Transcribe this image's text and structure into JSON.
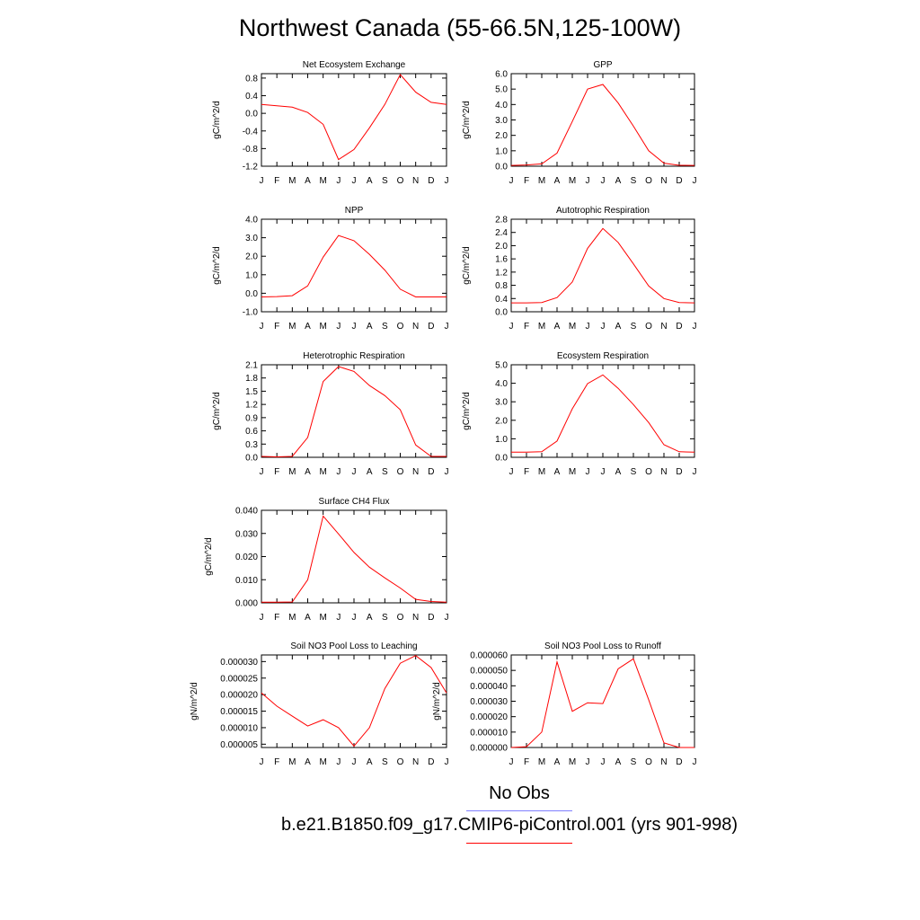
{
  "title": "Northwest Canada (55-66.5N,125-100W)",
  "colors": {
    "model_line": "#ff0000",
    "obs_line": "#8080ff",
    "axis": "#000000"
  },
  "legend": {
    "obs_label": "No Obs",
    "model_label": "b.e21.B1850.f09_g17.CMIP6-piControl.001 (yrs 901-998)"
  },
  "chart_data": [
    {
      "type": "line",
      "title": "Net Ecosystem Exchange",
      "ylabel": "gC/m^2/d",
      "xlabel": "",
      "x": [
        "J",
        "F",
        "M",
        "A",
        "M",
        "J",
        "J",
        "A",
        "S",
        "O",
        "N",
        "D",
        "J"
      ],
      "ylim": [
        -1.2,
        0.9
      ],
      "yticks": [
        -1.2,
        -0.8,
        -0.4,
        0.0,
        0.4,
        0.8
      ],
      "ytick_labels": [
        "-1.2",
        "-0.8",
        "-0.4",
        "0.0",
        "0.4",
        "0.8"
      ],
      "series": [
        {
          "values": [
            0.2,
            0.17,
            0.14,
            0.02,
            -0.25,
            -1.05,
            -0.82,
            -0.33,
            0.2,
            0.88,
            0.48,
            0.25,
            0.2
          ]
        }
      ]
    },
    {
      "type": "line",
      "title": "GPP",
      "ylabel": "gC/m^2/d",
      "xlabel": "",
      "x": [
        "J",
        "F",
        "M",
        "A",
        "M",
        "J",
        "J",
        "A",
        "S",
        "O",
        "N",
        "D",
        "J"
      ],
      "ylim": [
        0,
        6.0
      ],
      "yticks": [
        0,
        1,
        2,
        3,
        4,
        5,
        6
      ],
      "ytick_labels": [
        "0.0",
        "1.0",
        "2.0",
        "3.0",
        "4.0",
        "5.0",
        "6.0"
      ],
      "series": [
        {
          "values": [
            0.05,
            0.08,
            0.15,
            0.85,
            2.9,
            5.0,
            5.3,
            4.1,
            2.6,
            1.0,
            0.2,
            0.06,
            0.05
          ]
        }
      ]
    },
    {
      "type": "line",
      "title": "NPP",
      "ylabel": "gC/m^2/d",
      "xlabel": "",
      "x": [
        "J",
        "F",
        "M",
        "A",
        "M",
        "J",
        "J",
        "A",
        "S",
        "O",
        "N",
        "D",
        "J"
      ],
      "ylim": [
        -1.0,
        4.0
      ],
      "yticks": [
        -1,
        0,
        1,
        2,
        3,
        4
      ],
      "ytick_labels": [
        "-1.0",
        "0.0",
        "1.0",
        "2.0",
        "3.0",
        "4.0"
      ],
      "series": [
        {
          "values": [
            -0.2,
            -0.18,
            -0.13,
            0.4,
            1.95,
            3.12,
            2.84,
            2.1,
            1.25,
            0.22,
            -0.2,
            -0.2,
            -0.2
          ]
        }
      ]
    },
    {
      "type": "line",
      "title": "Autotrophic Respiration",
      "ylabel": "gC/m^2/d",
      "xlabel": "",
      "x": [
        "J",
        "F",
        "M",
        "A",
        "M",
        "J",
        "J",
        "A",
        "S",
        "O",
        "N",
        "D",
        "J"
      ],
      "ylim": [
        0,
        2.8
      ],
      "yticks": [
        0,
        0.4,
        0.8,
        1.2,
        1.6,
        2.0,
        2.4,
        2.8
      ],
      "ytick_labels": [
        "0.0",
        "0.4",
        "0.8",
        "1.2",
        "1.6",
        "2.0",
        "2.4",
        "2.8"
      ],
      "series": [
        {
          "values": [
            0.27,
            0.27,
            0.28,
            0.43,
            0.9,
            1.92,
            2.52,
            2.1,
            1.45,
            0.78,
            0.4,
            0.28,
            0.27
          ]
        }
      ]
    },
    {
      "type": "line",
      "title": "Heterotrophic Respiration",
      "ylabel": "gC/m^2/d",
      "xlabel": "",
      "x": [
        "J",
        "F",
        "M",
        "A",
        "M",
        "J",
        "J",
        "A",
        "S",
        "O",
        "N",
        "D",
        "J"
      ],
      "ylim": [
        0,
        2.1
      ],
      "yticks": [
        0,
        0.3,
        0.6,
        0.9,
        1.2,
        1.5,
        1.8,
        2.1
      ],
      "ytick_labels": [
        "0.0",
        "0.3",
        "0.6",
        "0.9",
        "1.2",
        "1.5",
        "1.8",
        "2.1"
      ],
      "series": [
        {
          "values": [
            0.02,
            0.01,
            0.02,
            0.45,
            1.72,
            2.06,
            1.95,
            1.63,
            1.4,
            1.08,
            0.28,
            0.02,
            0.02
          ]
        }
      ]
    },
    {
      "type": "line",
      "title": "Ecosystem Respiration",
      "ylabel": "gC/m^2/d",
      "xlabel": "",
      "x": [
        "J",
        "F",
        "M",
        "A",
        "M",
        "J",
        "J",
        "A",
        "S",
        "O",
        "N",
        "D",
        "J"
      ],
      "ylim": [
        0,
        5.0
      ],
      "yticks": [
        0,
        1,
        2,
        3,
        4,
        5
      ],
      "ytick_labels": [
        "0.0",
        "1.0",
        "2.0",
        "3.0",
        "4.0",
        "5.0"
      ],
      "series": [
        {
          "values": [
            0.28,
            0.28,
            0.3,
            0.88,
            2.62,
            3.98,
            4.45,
            3.73,
            2.85,
            1.88,
            0.68,
            0.3,
            0.28
          ]
        }
      ]
    },
    {
      "type": "line",
      "title": "Surface CH4 Flux",
      "ylabel": "gC/m^2/d",
      "xlabel": "",
      "x": [
        "J",
        "F",
        "M",
        "A",
        "M",
        "J",
        "J",
        "A",
        "S",
        "O",
        "N",
        "D",
        "J"
      ],
      "ylim": [
        0,
        0.04
      ],
      "yticks": [
        0,
        0.01,
        0.02,
        0.03,
        0.04
      ],
      "ytick_labels": [
        "0.000",
        "0.010",
        "0.020",
        "0.030",
        "0.040"
      ],
      "series": [
        {
          "values": [
            0.0003,
            0.0003,
            0.0004,
            0.01,
            0.0375,
            0.0298,
            0.0218,
            0.0154,
            0.0108,
            0.0064,
            0.0015,
            0.0006,
            0.0003
          ]
        }
      ]
    },
    {
      "type": "line",
      "title": "Soil NO3 Pool Loss to Leaching",
      "ylabel": "gN/m^2/d",
      "xlabel": "",
      "x": [
        "J",
        "F",
        "M",
        "A",
        "M",
        "J",
        "J",
        "A",
        "S",
        "O",
        "N",
        "D",
        "J"
      ],
      "ylim": [
        4e-06,
        3.2e-05
      ],
      "yticks": [
        5e-06,
        1e-05,
        1.5e-05,
        2e-05,
        2.5e-05,
        3e-05
      ],
      "ytick_labels": [
        "0.000005",
        "0.000010",
        "0.000015",
        "0.000020",
        "0.000025",
        "0.000030"
      ],
      "series": [
        {
          "values": [
            2.05e-05,
            1.65e-05,
            1.35e-05,
            1.05e-05,
            1.24e-05,
            1e-05,
            4.4e-06,
            1e-05,
            2.18e-05,
            2.95e-05,
            3.18e-05,
            2.82e-05,
            2.05e-05
          ]
        }
      ]
    },
    {
      "type": "line",
      "title": "Soil NO3 Pool Loss to Runoff",
      "ylabel": "gN/m^2/d",
      "xlabel": "",
      "x": [
        "J",
        "F",
        "M",
        "A",
        "M",
        "J",
        "J",
        "A",
        "S",
        "O",
        "N",
        "D",
        "J"
      ],
      "ylim": [
        0,
        6e-05
      ],
      "yticks": [
        0,
        1e-05,
        2e-05,
        3e-05,
        4e-05,
        5e-05,
        6e-05
      ],
      "ytick_labels": [
        "0.000000",
        "0.000010",
        "0.000020",
        "0.000030",
        "0.000040",
        "0.000050",
        "0.000060"
      ],
      "series": [
        {
          "values": [
            0,
            5e-07,
            1e-05,
            5.55e-05,
            2.35e-05,
            2.9e-05,
            2.85e-05,
            5.1e-05,
            5.75e-05,
            3.1e-05,
            3e-06,
            0,
            0
          ]
        }
      ]
    }
  ]
}
